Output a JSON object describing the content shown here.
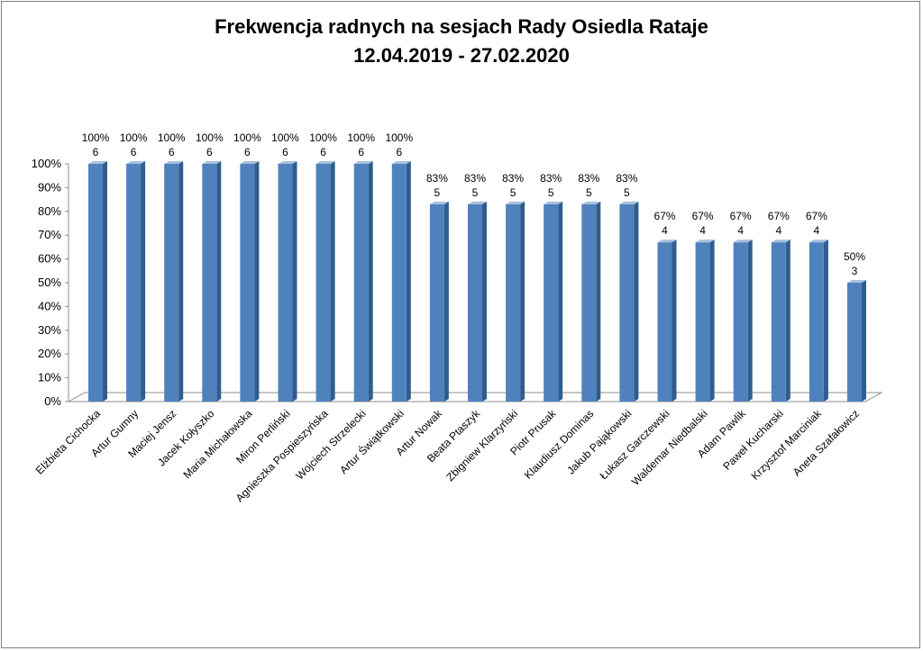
{
  "chart_data": {
    "type": "bar",
    "title": "Frekwencja radnych na sesjach Rady Osiedla Rataje",
    "subtitle": "12.04.2019 - 27.02.2020",
    "xlabel": "",
    "ylabel": "",
    "ylim": [
      0,
      100
    ],
    "y_ticks": [
      "0%",
      "10%",
      "20%",
      "30%",
      "40%",
      "50%",
      "60%",
      "70%",
      "80%",
      "90%",
      "100%"
    ],
    "grid": false,
    "legend": "none",
    "bar_color": "#4f81bd",
    "categories": [
      "Elżbieta Cichocka",
      "Artur Gumny",
      "Maciej Jensz",
      "Jacek Kołyszko",
      "Maria Michałowska",
      "Miron Perliński",
      "Agnieszka Pospieszyńska",
      "Wojciech Strzelecki",
      "Artur Świątkowski",
      "Artur Nowak",
      "Beata Ptaszyk",
      "Zbigniew Klarzyński",
      "Piotr Prusak",
      "Klaudiusz Dominas",
      "Jakub Pająkowski",
      "Łukasz Garczewski",
      "Waldemar Niedbalski",
      "Adam Pawlik",
      "Paweł Kucharski",
      "Krzysztof Marciniak",
      "Aneta Szafałowicz"
    ],
    "values": [
      100,
      100,
      100,
      100,
      100,
      100,
      100,
      100,
      100,
      83,
      83,
      83,
      83,
      83,
      83,
      67,
      67,
      67,
      67,
      67,
      50
    ],
    "percent_labels": [
      "100%",
      "100%",
      "100%",
      "100%",
      "100%",
      "100%",
      "100%",
      "100%",
      "100%",
      "83%",
      "83%",
      "83%",
      "83%",
      "83%",
      "83%",
      "67%",
      "67%",
      "67%",
      "67%",
      "67%",
      "50%"
    ],
    "count_labels": [
      "6",
      "6",
      "6",
      "6",
      "6",
      "6",
      "6",
      "6",
      "6",
      "5",
      "5",
      "5",
      "5",
      "5",
      "5",
      "4",
      "4",
      "4",
      "4",
      "4",
      "3"
    ]
  }
}
